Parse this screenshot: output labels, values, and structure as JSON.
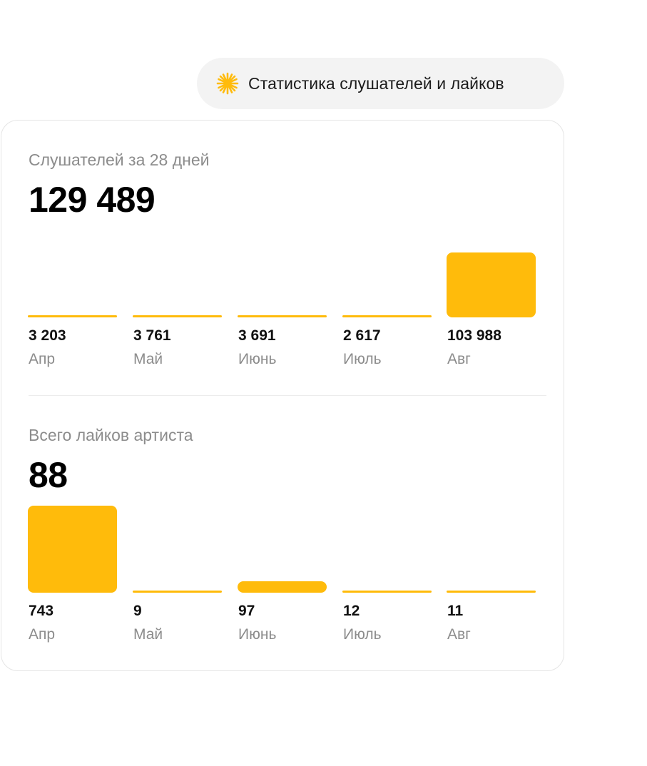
{
  "header": {
    "icon": "sparkle-icon",
    "title": "Статистика слушателей и лайков",
    "pill_color": "#f3f3f3"
  },
  "colors": {
    "bar": "#ffbb0b",
    "muted_text": "#8c8c8c"
  },
  "chart_data": [
    {
      "type": "bar",
      "title": "Слушателей за 28 дней",
      "total": "129 489",
      "categories": [
        "Апр",
        "Май",
        "Июнь",
        "Июль",
        "Авг"
      ],
      "values": [
        3203,
        3761,
        3691,
        2617,
        103988
      ],
      "value_labels": [
        "3 203",
        "3 761",
        "3 691",
        "2 617",
        "103 988"
      ],
      "ylim": [
        0,
        103988
      ],
      "grid": false
    },
    {
      "type": "bar",
      "title": "Всего лайков артиста",
      "total": "88",
      "categories": [
        "Апр",
        "Май",
        "Июнь",
        "Июль",
        "Авг"
      ],
      "values": [
        743,
        9,
        97,
        12,
        11
      ],
      "value_labels": [
        "743",
        "9",
        "97",
        "12",
        "11"
      ],
      "ylim": [
        0,
        743
      ],
      "grid": false
    }
  ]
}
